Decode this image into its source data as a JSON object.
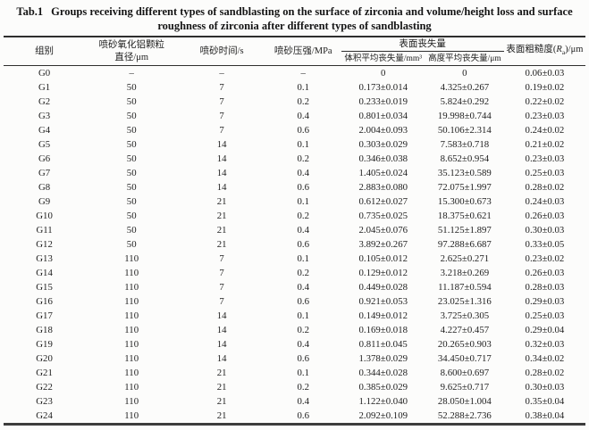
{
  "title": {
    "label": "Tab.1",
    "line1": "Groups receiving different types of sandblasting on the surface of zirconia and volume/height loss and surface",
    "line2": "roughness of zirconia after different types of sandblasting"
  },
  "table": {
    "headers": {
      "group": "组别",
      "particle_line1": "喷砂氧化铝颗粒",
      "particle_line2": "直径/μm",
      "time": "喷砂时间/s",
      "pressure": "喷砂压强/MPa",
      "surface_loss_group": "表面丧失量",
      "volume_loss": "体积平均丧失量/mm³",
      "height_loss": "高度平均丧失量/μm",
      "roughness_prefix": "表面粗糙度(",
      "roughness_symbol": "R",
      "roughness_sub": "a",
      "roughness_suffix": ")/μm"
    },
    "rows": [
      [
        "G0",
        "–",
        "–",
        "–",
        "0",
        "0",
        "0.06±0.03"
      ],
      [
        "G1",
        "50",
        "7",
        "0.1",
        "0.173±0.014",
        "4.325±0.267",
        "0.19±0.02"
      ],
      [
        "G2",
        "50",
        "7",
        "0.2",
        "0.233±0.019",
        "5.824±0.292",
        "0.22±0.02"
      ],
      [
        "G3",
        "50",
        "7",
        "0.4",
        "0.801±0.034",
        "19.998±0.744",
        "0.23±0.03"
      ],
      [
        "G4",
        "50",
        "7",
        "0.6",
        "2.004±0.093",
        "50.106±2.314",
        "0.24±0.02"
      ],
      [
        "G5",
        "50",
        "14",
        "0.1",
        "0.303±0.029",
        "7.583±0.718",
        "0.21±0.02"
      ],
      [
        "G6",
        "50",
        "14",
        "0.2",
        "0.346±0.038",
        "8.652±0.954",
        "0.23±0.03"
      ],
      [
        "G7",
        "50",
        "14",
        "0.4",
        "1.405±0.024",
        "35.123±0.589",
        "0.25±0.03"
      ],
      [
        "G8",
        "50",
        "14",
        "0.6",
        "2.883±0.080",
        "72.075±1.997",
        "0.28±0.02"
      ],
      [
        "G9",
        "50",
        "21",
        "0.1",
        "0.612±0.027",
        "15.300±0.673",
        "0.24±0.03"
      ],
      [
        "G10",
        "50",
        "21",
        "0.2",
        "0.735±0.025",
        "18.375±0.621",
        "0.26±0.03"
      ],
      [
        "G11",
        "50",
        "21",
        "0.4",
        "2.045±0.076",
        "51.125±1.897",
        "0.30±0.03"
      ],
      [
        "G12",
        "50",
        "21",
        "0.6",
        "3.892±0.267",
        "97.288±6.687",
        "0.33±0.05"
      ],
      [
        "G13",
        "110",
        "7",
        "0.1",
        "0.105±0.012",
        "2.625±0.271",
        "0.23±0.02"
      ],
      [
        "G14",
        "110",
        "7",
        "0.2",
        "0.129±0.012",
        "3.218±0.269",
        "0.26±0.03"
      ],
      [
        "G15",
        "110",
        "7",
        "0.4",
        "0.449±0.028",
        "11.187±0.594",
        "0.28±0.03"
      ],
      [
        "G16",
        "110",
        "7",
        "0.6",
        "0.921±0.053",
        "23.025±1.316",
        "0.29±0.03"
      ],
      [
        "G17",
        "110",
        "14",
        "0.1",
        "0.149±0.012",
        "3.725±0.305",
        "0.25±0.03"
      ],
      [
        "G18",
        "110",
        "14",
        "0.2",
        "0.169±0.018",
        "4.227±0.457",
        "0.29±0.04"
      ],
      [
        "G19",
        "110",
        "14",
        "0.4",
        "0.811±0.045",
        "20.265±0.903",
        "0.32±0.03"
      ],
      [
        "G20",
        "110",
        "14",
        "0.6",
        "1.378±0.029",
        "34.450±0.717",
        "0.34±0.02"
      ],
      [
        "G21",
        "110",
        "21",
        "0.1",
        "0.344±0.028",
        "8.600±0.697",
        "0.28±0.02"
      ],
      [
        "G22",
        "110",
        "21",
        "0.2",
        "0.385±0.029",
        "9.625±0.717",
        "0.30±0.03"
      ],
      [
        "G23",
        "110",
        "21",
        "0.4",
        "1.122±0.040",
        "28.050±1.004",
        "0.35±0.04"
      ],
      [
        "G24",
        "110",
        "21",
        "0.6",
        "2.092±0.109",
        "52.288±2.736",
        "0.38±0.04"
      ]
    ]
  }
}
